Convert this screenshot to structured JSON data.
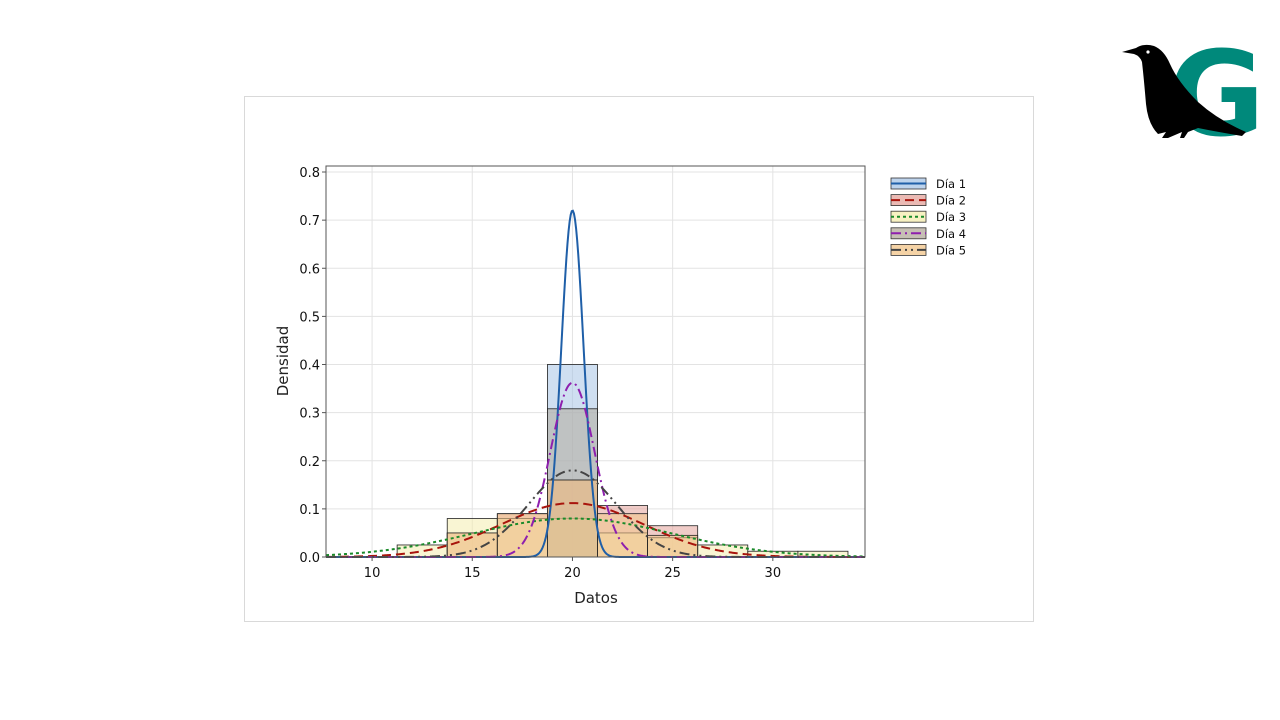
{
  "colors": {
    "logo_teal": "#00897b",
    "logo_black": "#000000"
  },
  "logo": {
    "name": "crow-G-logo"
  },
  "chart_data": {
    "type": "histogram",
    "xlabel": "Datos",
    "ylabel": "Densidad",
    "xlim": [
      7.7,
      34.6
    ],
    "ylim": [
      0,
      0.8125
    ],
    "xticks": [
      10,
      15,
      20,
      25,
      30
    ],
    "yticks": [
      0.0,
      0.1,
      0.2,
      0.3,
      0.4,
      0.5,
      0.6,
      0.7,
      0.8
    ],
    "grid": true,
    "legend_position": "outside-right-top",
    "series": [
      {
        "name": "Día 1",
        "fill": "#a7c4e6",
        "line_color": "#1f5fa8",
        "dash": "solid",
        "bins": [
          {
            "x0": 18.75,
            "x1": 21.25,
            "density": 0.4
          }
        ],
        "density_curve": {
          "mean": 20,
          "sd": 0.555,
          "peak": 0.72
        }
      },
      {
        "name": "Día 2",
        "fill": "#e4a39b",
        "line_color": "#a8140c",
        "dash": "dashed",
        "bins": [
          {
            "x0": 13.75,
            "x1": 16.25,
            "density": 0.05
          },
          {
            "x0": 16.25,
            "x1": 18.75,
            "density": 0.09
          },
          {
            "x0": 18.75,
            "x1": 21.25,
            "density": 0.16
          },
          {
            "x0": 21.25,
            "x1": 23.75,
            "density": 0.107
          },
          {
            "x0": 23.75,
            "x1": 26.25,
            "density": 0.065
          }
        ],
        "density_curve": {
          "mean": 20,
          "sd": 3.55,
          "peak": 0.112
        }
      },
      {
        "name": "Día 3",
        "fill": "#f4ecae",
        "line_color": "#1a8a2a",
        "dash": "dotted",
        "bins": [
          {
            "x0": 11.25,
            "x1": 13.75,
            "density": 0.025
          },
          {
            "x0": 13.75,
            "x1": 16.25,
            "density": 0.08
          },
          {
            "x0": 16.25,
            "x1": 18.75,
            "density": 0.08
          },
          {
            "x0": 18.75,
            "x1": 21.25,
            "density": 0.08
          },
          {
            "x0": 21.25,
            "x1": 23.75,
            "density": 0.05
          },
          {
            "x0": 23.75,
            "x1": 26.25,
            "density": 0.04
          },
          {
            "x0": 26.25,
            "x1": 28.75,
            "density": 0.025
          },
          {
            "x0": 28.75,
            "x1": 31.25,
            "density": 0.012
          },
          {
            "x0": 31.25,
            "x1": 33.75,
            "density": 0.012
          }
        ],
        "density_curve": {
          "mean": 20,
          "sd": 5.0,
          "peak": 0.08
        }
      },
      {
        "name": "Día 4",
        "fill": "#b3a99b",
        "line_color": "#8e1fae",
        "dash": "dashdot",
        "bins": [
          {
            "x0": 18.75,
            "x1": 21.25,
            "density": 0.308
          }
        ],
        "density_curve": {
          "mean": 20,
          "sd": 1.1,
          "peak": 0.362
        }
      },
      {
        "name": "Día 5",
        "fill": "#f2c488",
        "line_color": "#444444",
        "dash": "dashdotdot",
        "bins": [
          {
            "x0": 13.75,
            "x1": 16.25,
            "density": 0.05
          },
          {
            "x0": 16.25,
            "x1": 18.75,
            "density": 0.09
          },
          {
            "x0": 18.75,
            "x1": 21.25,
            "density": 0.16
          },
          {
            "x0": 21.25,
            "x1": 23.75,
            "density": 0.09
          },
          {
            "x0": 23.75,
            "x1": 26.25,
            "density": 0.045
          }
        ],
        "density_curve": {
          "mean": 20,
          "sd": 2.2,
          "peak": 0.18
        }
      }
    ]
  }
}
